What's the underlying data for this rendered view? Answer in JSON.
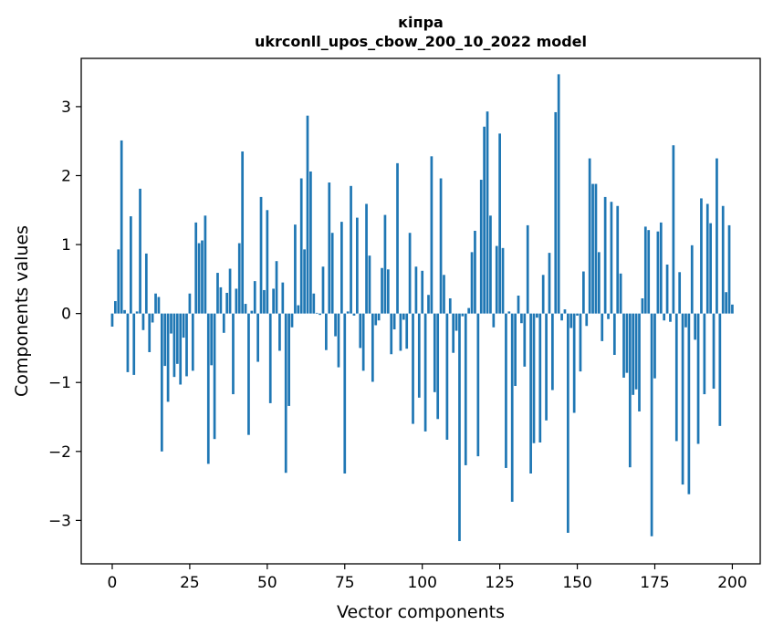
{
  "chart_data": {
    "type": "bar",
    "title": [
      "кіпра",
      "ukrconll_upos_cbow_200_10_2022 model"
    ],
    "xlabel": "Vector components",
    "ylabel": "Components values",
    "xlim": [
      -10,
      209
    ],
    "ylim": [
      -3.63,
      3.7
    ],
    "xticks": [
      0,
      25,
      50,
      75,
      100,
      125,
      150,
      175,
      200
    ],
    "xtick_labels": [
      "0",
      "25",
      "50",
      "75",
      "100",
      "125",
      "150",
      "175",
      "200"
    ],
    "yticks": [
      -3,
      -2,
      -1,
      0,
      1,
      2,
      3
    ],
    "ytick_labels": [
      "−3",
      "−2",
      "−1",
      "0",
      "1",
      "2",
      "3"
    ],
    "grid": false,
    "bar_color": "#1f77b4",
    "values": [
      -0.19,
      0.18,
      0.93,
      2.51,
      0.05,
      -0.85,
      1.41,
      -0.89,
      0.03,
      1.81,
      -0.24,
      0.87,
      -0.56,
      -0.13,
      0.29,
      0.24,
      -2.0,
      -0.76,
      -1.28,
      -0.29,
      -0.92,
      -0.73,
      -1.03,
      -0.35,
      -0.91,
      0.29,
      -0.83,
      1.32,
      1.02,
      1.06,
      1.42,
      -2.18,
      -0.75,
      -1.82,
      0.59,
      0.38,
      -0.28,
      0.3,
      0.65,
      -1.17,
      0.36,
      1.02,
      2.35,
      0.14,
      -1.76,
      0.04,
      0.47,
      -0.7,
      1.69,
      0.34,
      1.5,
      -1.3,
      0.36,
      0.76,
      -0.54,
      0.45,
      -2.31,
      -1.34,
      -0.2,
      1.29,
      0.12,
      1.96,
      0.93,
      2.87,
      2.06,
      0.29,
      0.01,
      -0.02,
      0.68,
      -0.53,
      1.9,
      1.17,
      -0.33,
      -0.78,
      1.33,
      -2.32,
      0.03,
      1.85,
      -0.03,
      1.39,
      -0.5,
      -0.83,
      1.59,
      0.84,
      -0.99,
      -0.17,
      -0.1,
      0.66,
      1.43,
      0.64,
      -0.59,
      -0.23,
      2.18,
      -0.54,
      -0.09,
      -0.51,
      1.17,
      -1.6,
      0.68,
      -1.22,
      0.62,
      -1.71,
      0.27,
      2.28,
      -1.14,
      -1.53,
      1.96,
      0.56,
      -1.83,
      0.22,
      -0.57,
      -0.25,
      -3.3,
      -0.04,
      -2.2,
      0.08,
      0.89,
      1.2,
      -2.07,
      1.94,
      2.71,
      2.93,
      1.42,
      -0.2,
      0.98,
      2.61,
      0.95,
      -2.24,
      0.03,
      -2.73,
      -1.05,
      0.26,
      -0.14,
      -0.77,
      1.28,
      -2.32,
      -1.88,
      -0.06,
      -1.87,
      0.56,
      -1.55,
      0.88,
      -1.11,
      2.92,
      3.47,
      -0.1,
      0.06,
      -3.18,
      -0.21,
      -1.44,
      -0.03,
      -0.84,
      0.61,
      -0.18,
      2.25,
      1.88,
      1.88,
      0.89,
      -0.4,
      1.69,
      -0.08,
      1.62,
      -0.6,
      1.56,
      0.58,
      -0.93,
      -0.86,
      -2.23,
      -1.18,
      -1.1,
      -1.42,
      0.22,
      1.26,
      1.21,
      -3.23,
      -0.94,
      1.19,
      1.32,
      -0.1,
      0.71,
      -0.12,
      2.44,
      -1.85,
      0.6,
      -2.48,
      -0.2,
      -2.62,
      0.99,
      -0.38,
      -1.89,
      1.67,
      -1.17,
      1.59,
      1.31,
      -1.09,
      2.25,
      -1.63,
      1.56,
      0.31,
      1.28,
      0.13
    ]
  }
}
